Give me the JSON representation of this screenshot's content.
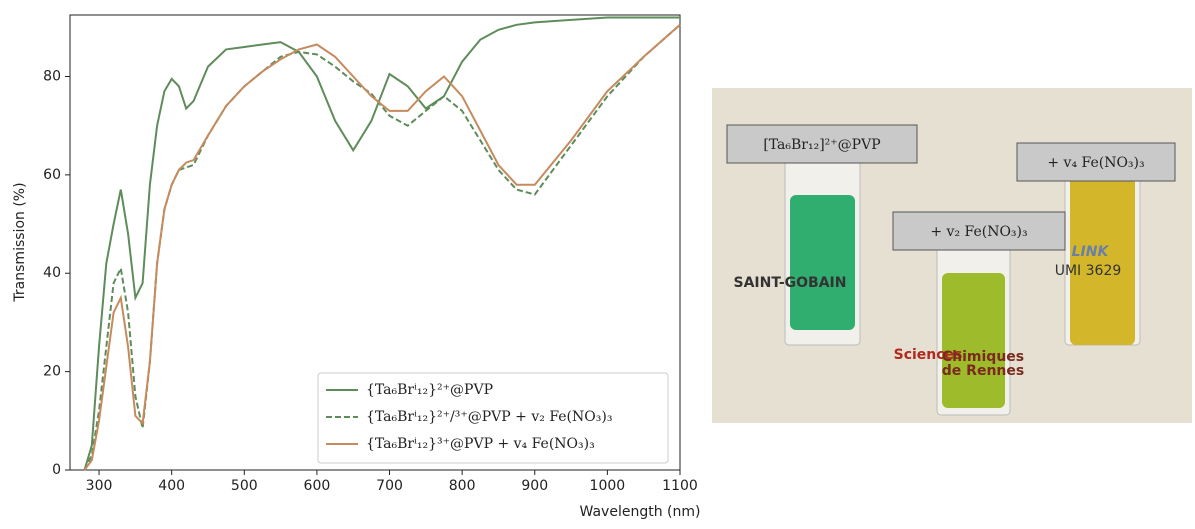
{
  "chart_data": {
    "type": "line",
    "xlabel": "Wavelength (nm)",
    "ylabel": "Transmission (%)",
    "x": [
      280,
      290,
      300,
      310,
      320,
      330,
      340,
      350,
      360,
      370,
      380,
      390,
      400,
      410,
      420,
      430,
      450,
      475,
      500,
      525,
      550,
      575,
      600,
      625,
      650,
      675,
      700,
      725,
      750,
      775,
      800,
      825,
      850,
      875,
      900,
      950,
      1000,
      1050,
      1100
    ],
    "series": [
      {
        "name": "{Ta₆Brⁱ₁₂}²⁺@PVP",
        "color": "#5e8c5a",
        "dash": false,
        "values": [
          0,
          5,
          25,
          42,
          50,
          57,
          48,
          35,
          38,
          58,
          70,
          77,
          79.5,
          78,
          73.5,
          75,
          82,
          85.5,
          86,
          86.5,
          87,
          85,
          80,
          71,
          65,
          71,
          80.5,
          78,
          73.5,
          76,
          83,
          87.5,
          89.5,
          90.5,
          91,
          91.5,
          92,
          92,
          92
        ]
      },
      {
        "name": "{Ta₆Brⁱ₁₂}²⁺/³⁺@PVP + v₂ Fe(NO₃)₃",
        "color": "#5e8c5a",
        "dash": true,
        "values": [
          0,
          3,
          12,
          25,
          38,
          41,
          32,
          15,
          8.5,
          22,
          42,
          53,
          58,
          61,
          61.5,
          62,
          68,
          74,
          78,
          81,
          84,
          85,
          84.5,
          82,
          79,
          76.5,
          72,
          70,
          73,
          76,
          73,
          67,
          61,
          57,
          56,
          66,
          76,
          84,
          90.5
        ]
      },
      {
        "name": "{Ta₆Brⁱ₁₂}³⁺@PVP + v₄ Fe(NO₃)₃",
        "color": "#c58b5e",
        "dash": false,
        "values": [
          0,
          2,
          10,
          21,
          32,
          35,
          25,
          11,
          9.5,
          22,
          42,
          53,
          58,
          61,
          62.5,
          63,
          68,
          74,
          78,
          81,
          83.5,
          85.5,
          86.5,
          84,
          80,
          76,
          73,
          73,
          77,
          80,
          76,
          69,
          62,
          58,
          58,
          67,
          77,
          84,
          90.5
        ]
      }
    ],
    "xlim": [
      260,
      1100
    ],
    "ylim": [
      0,
      92.5
    ],
    "xticks": [
      300,
      400,
      500,
      600,
      700,
      800,
      900,
      1000,
      1100
    ],
    "yticks": [
      0,
      20,
      40,
      60,
      80
    ],
    "legend": "lower right"
  },
  "photo": {
    "labels": [
      "[Ta₆Br₁₂]²⁺@PVP",
      "+ v₂ Fe(NO₃)₃",
      "+ v₄ Fe(NO₃)₃"
    ],
    "logos": [
      "SAINT-GOBAIN",
      "Sciences",
      "Chimiques",
      "de Rennes",
      "LINK",
      "UMI 3629"
    ]
  }
}
